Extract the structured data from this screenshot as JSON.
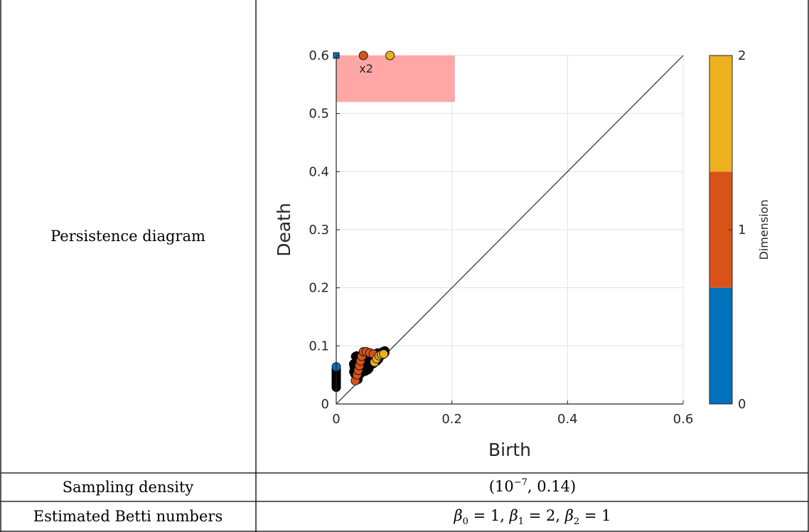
{
  "table": {
    "row1_label": "Persistence diagram",
    "row2_label": "Sampling density",
    "row2_value": {
      "open": "(10",
      "exp": "−7",
      "rest": ", 0.14)"
    },
    "row3_label": "Estimated Betti numbers",
    "row3_value": {
      "b0": "1",
      "b1": "2",
      "b2": "1"
    }
  },
  "chart_data": {
    "type": "scatter",
    "xlabel": "Birth",
    "ylabel": "Death",
    "xlim": [
      0,
      0.6
    ],
    "ylim": [
      0,
      0.6
    ],
    "xticks": [
      "0",
      "0.2",
      "0.4",
      "0.6"
    ],
    "yticks": [
      "0",
      "0.1",
      "0.2",
      "0.3",
      "0.4",
      "0.5",
      "0.6"
    ],
    "grid": true,
    "diagonal": true,
    "highlight_region": {
      "x": [
        0,
        0.205
      ],
      "y": [
        0.52,
        0.6
      ],
      "color": "#ffa6a6"
    },
    "annotation": "x2",
    "colorbar": {
      "label": "Dimension",
      "ticks": [
        "0",
        "1",
        "2"
      ],
      "colors": [
        "#0072bd",
        "#d95319",
        "#edb120"
      ]
    },
    "series": [
      {
        "dimension": 0,
        "color": "#0072bd",
        "infinite": [
          [
            0,
            0.6
          ]
        ],
        "points": [
          [
            0,
            0.064
          ]
        ],
        "noise_x": [
          0,
          0
        ],
        "noise_y": [
          0.028,
          0.06
        ]
      },
      {
        "dimension": 1,
        "color": "#d95319",
        "infinite": [
          [
            0.047,
            0.6
          ]
        ],
        "points": [
          [
            0.033,
            0.04
          ],
          [
            0.036,
            0.05
          ],
          [
            0.038,
            0.058
          ],
          [
            0.04,
            0.066
          ],
          [
            0.042,
            0.074
          ],
          [
            0.044,
            0.082
          ],
          [
            0.047,
            0.09
          ],
          [
            0.052,
            0.09
          ],
          [
            0.058,
            0.088
          ],
          [
            0.064,
            0.086
          ]
        ],
        "noise_x": [
          0.03,
          0.075
        ],
        "noise_y": [
          0.037,
          0.088
        ]
      },
      {
        "dimension": 2,
        "color": "#edb120",
        "infinite": [
          [
            0.093,
            0.6
          ]
        ],
        "points": [
          [
            0.066,
            0.072
          ],
          [
            0.07,
            0.078
          ],
          [
            0.074,
            0.083
          ],
          [
            0.078,
            0.085
          ],
          [
            0.082,
            0.086
          ]
        ],
        "noise_x": [
          0.06,
          0.085
        ],
        "noise_y": [
          0.065,
          0.088
        ]
      }
    ]
  }
}
